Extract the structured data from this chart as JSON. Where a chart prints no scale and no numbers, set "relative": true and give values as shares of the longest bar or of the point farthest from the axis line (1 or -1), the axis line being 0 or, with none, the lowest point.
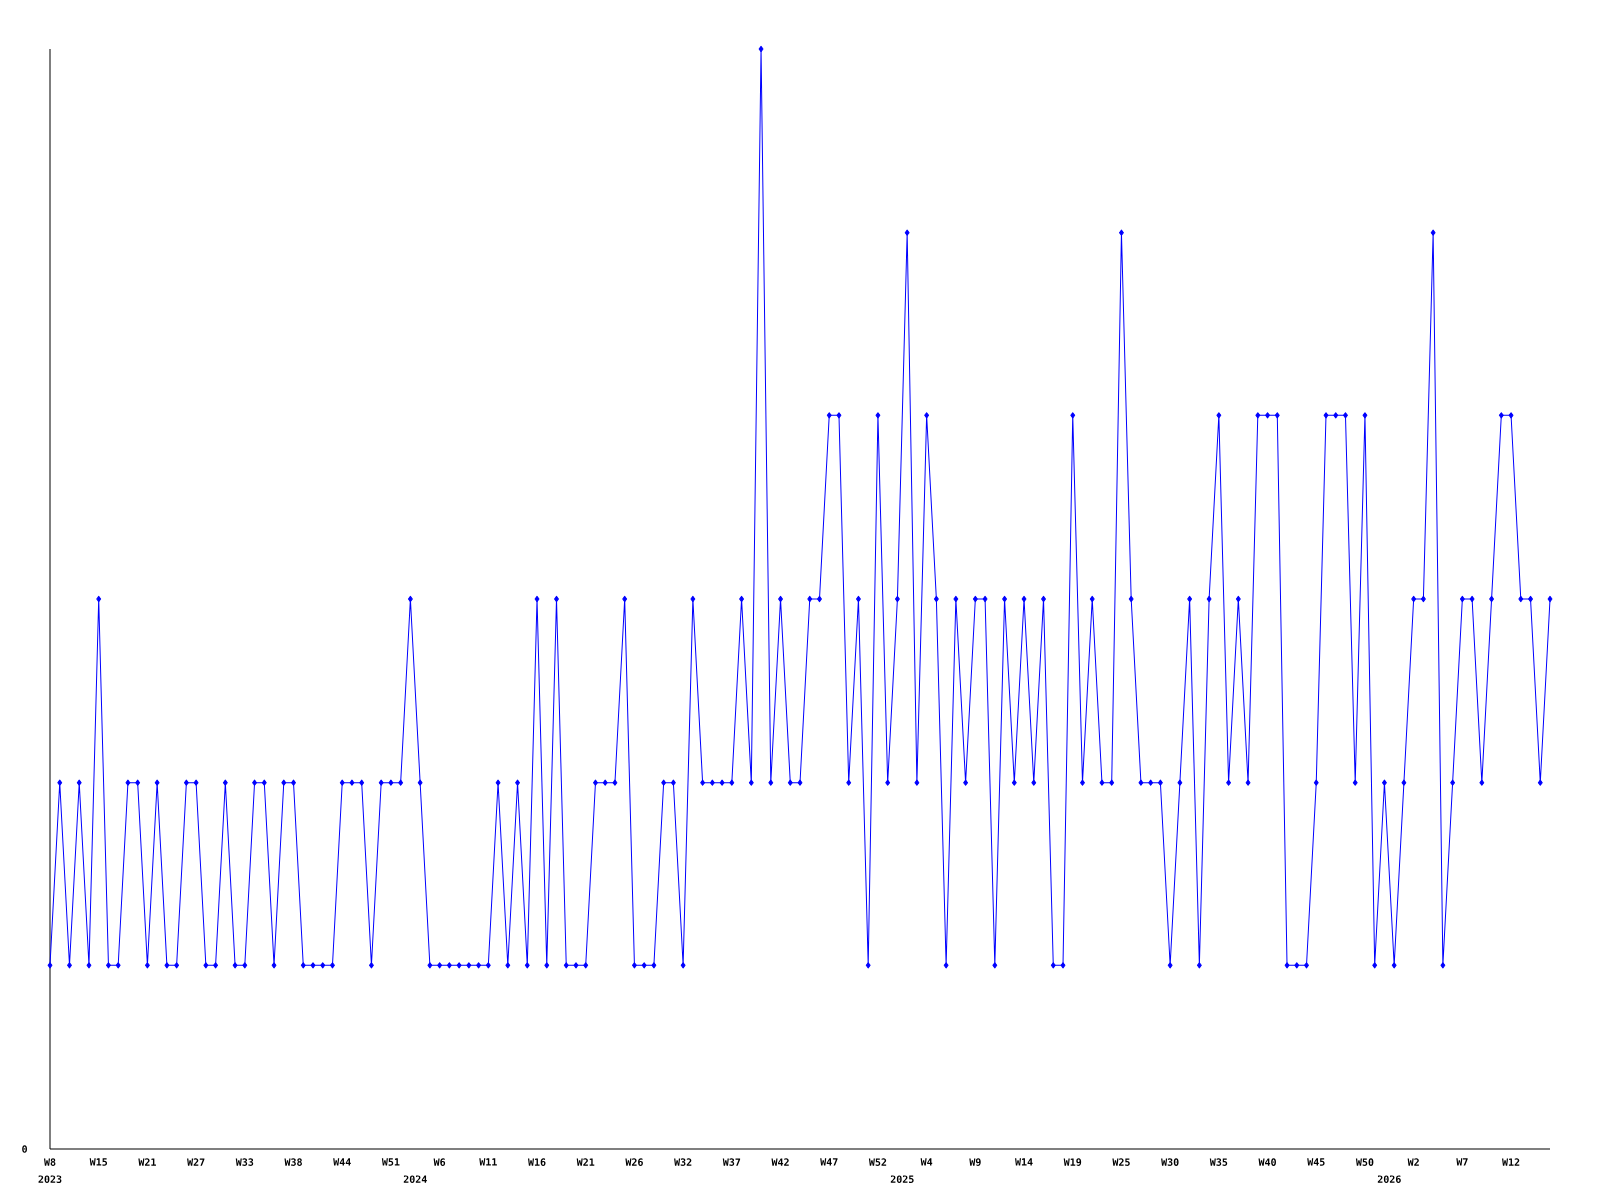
{
  "chart_data": {
    "type": "line",
    "relative": true,
    "color": "#0000ff",
    "marker": "diamond",
    "line_style": "solid",
    "categories": [
      "W8",
      null,
      null,
      null,
      null,
      "W15",
      null,
      null,
      null,
      null,
      "W21",
      null,
      null,
      null,
      null,
      "W27",
      null,
      null,
      null,
      null,
      "W33",
      null,
      null,
      null,
      null,
      "W38",
      null,
      null,
      null,
      null,
      "W44",
      null,
      null,
      null,
      null,
      "W51",
      null,
      null,
      null,
      null,
      "W6",
      null,
      null,
      null,
      null,
      "W11",
      null,
      null,
      null,
      null,
      "W16",
      null,
      null,
      null,
      null,
      "W21",
      null,
      null,
      null,
      null,
      "W26",
      null,
      null,
      null,
      null,
      "W32",
      null,
      null,
      null,
      null,
      "W37",
      null,
      null,
      null,
      null,
      "W42",
      null,
      null,
      null,
      null,
      "W47",
      null,
      null,
      null,
      null,
      "W52",
      null,
      null,
      null,
      null,
      "W4",
      null,
      null,
      null,
      null,
      "W9",
      null,
      null,
      null,
      null,
      "W14",
      null,
      null,
      null,
      null,
      "W19",
      null,
      null,
      null,
      null,
      "W25",
      null,
      null,
      null,
      null,
      "W30",
      null,
      null,
      null,
      null,
      "W35",
      null,
      null,
      null,
      null,
      "W40",
      null,
      null,
      null,
      null,
      "W45",
      null,
      null,
      null,
      null,
      "W50",
      null,
      null,
      null,
      null,
      "W2",
      null,
      null,
      null,
      null,
      "W7",
      null,
      null,
      null,
      null,
      "W12",
      null,
      null,
      null,
      null
    ],
    "values": [
      0.167,
      0.333,
      0.167,
      0.333,
      0.167,
      0.5,
      0.167,
      0.167,
      0.333,
      0.333,
      0.167,
      0.333,
      0.167,
      0.167,
      0.333,
      0.333,
      0.167,
      0.167,
      0.333,
      0.167,
      0.167,
      0.333,
      0.333,
      0.167,
      0.333,
      0.333,
      0.167,
      0.167,
      0.167,
      0.167,
      0.333,
      0.333,
      0.333,
      0.167,
      0.333,
      0.333,
      0.333,
      0.5,
      0.333,
      0.167,
      0.167,
      0.167,
      0.167,
      0.167,
      0.167,
      0.167,
      0.333,
      0.167,
      0.333,
      0.167,
      0.5,
      0.167,
      0.5,
      0.167,
      0.167,
      0.167,
      0.333,
      0.333,
      0.333,
      0.5,
      0.167,
      0.167,
      0.167,
      0.333,
      0.333,
      0.167,
      0.5,
      0.333,
      0.333,
      0.333,
      0.333,
      0.5,
      0.333,
      1,
      0.333,
      0.5,
      0.333,
      0.333,
      0.5,
      0.5,
      0.667,
      0.667,
      0.333,
      0.5,
      0.167,
      0.667,
      0.333,
      0.5,
      0.833,
      0.333,
      0.667,
      0.5,
      0.167,
      0.5,
      0.333,
      0.5,
      0.5,
      0.167,
      0.5,
      0.333,
      0.5,
      0.333,
      0.5,
      0.167,
      0.167,
      0.667,
      0.333,
      0.5,
      0.333,
      0.333,
      0.833,
      0.5,
      0.333,
      0.333,
      0.333,
      0.167,
      0.333,
      0.5,
      0.167,
      0.5,
      0.667,
      0.333,
      0.5,
      0.333,
      0.667,
      0.667,
      0.667,
      0.167,
      0.167,
      0.167,
      0.333,
      0.667,
      0.667,
      0.667,
      0.333,
      0.667,
      0.167,
      0.333,
      0.167,
      0.333,
      0.5,
      0.5,
      0.833,
      0.167,
      0.333,
      0.5,
      0.5,
      0.333,
      0.5,
      0.667,
      0.667,
      0.5,
      0.5,
      0.333,
      0.5
    ],
    "annotations": [
      "0",
      "2023",
      "2024",
      "2025",
      "2026"
    ]
  }
}
